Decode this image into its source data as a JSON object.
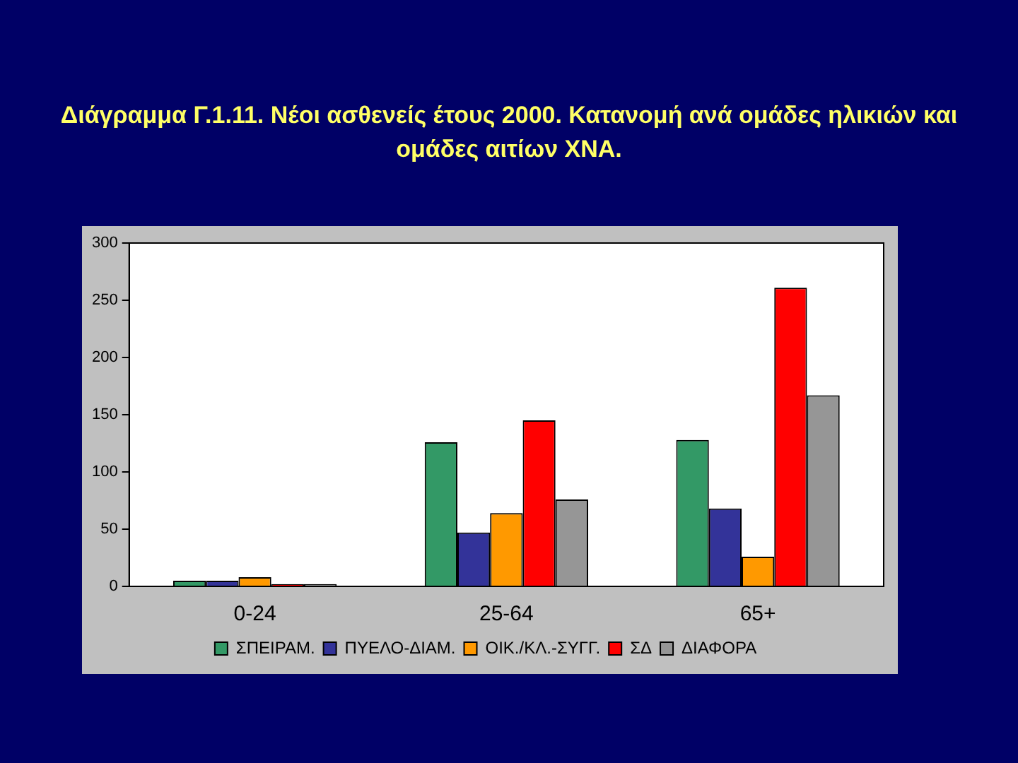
{
  "chart_data": {
    "type": "bar",
    "title": "Διάγραμμα Γ.1.11. Νέοι ασθενείς έτους 2000. Κατανομή ανά ομάδες ηλικιών και ομάδες αιτίων ΧΝΑ.",
    "categories": [
      "0-24",
      "25-64",
      "65+"
    ],
    "series": [
      {
        "name": "ΣΠΕΙΡΑΜ.",
        "color": "#339966",
        "values": [
          5,
          126,
          128
        ]
      },
      {
        "name": "ΠΥΕΛΟ-ΔΙΑΜ.",
        "color": "#333399",
        "values": [
          5,
          47,
          68
        ]
      },
      {
        "name": "ΟΙΚ./ΚΛ.-ΣΥΓΓ.",
        "color": "#ff9900",
        "values": [
          8,
          64,
          26
        ]
      },
      {
        "name": "ΣΔ",
        "color": "#ff0000",
        "values": [
          2,
          145,
          261
        ]
      },
      {
        "name": "ΔΙΑΦΟΡΑ",
        "color": "#969696",
        "values": [
          2,
          76,
          167
        ]
      }
    ],
    "ylim": [
      0,
      300
    ],
    "yticks": [
      0,
      50,
      100,
      150,
      200,
      250,
      300
    ],
    "grid": false,
    "legend": "bottom"
  }
}
